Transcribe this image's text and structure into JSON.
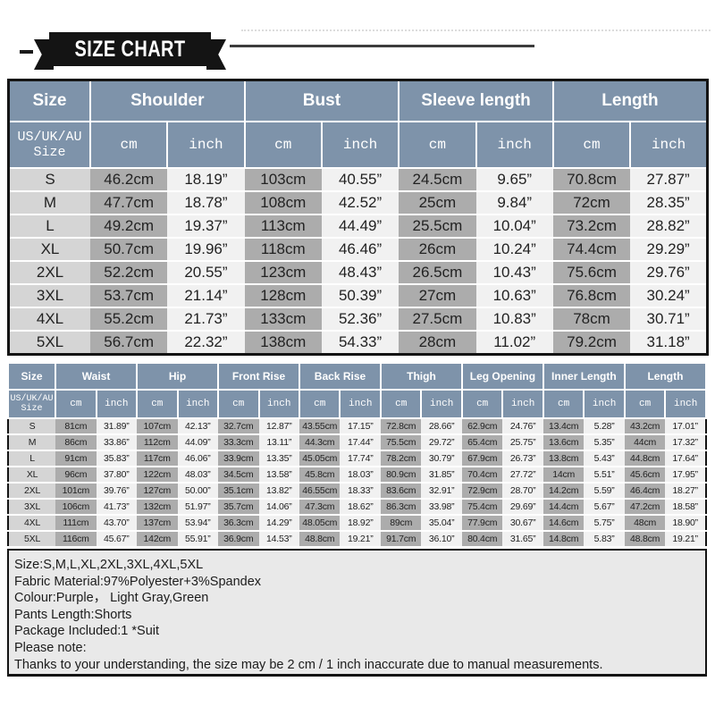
{
  "banner": {
    "title": "SIZE CHART"
  },
  "colors": {
    "header_blue": "#7E93AA",
    "size_column_bg": "#D5D5D5",
    "cm_column_bg": "#ACACAC",
    "inch_column_bg": "#F1F1F1",
    "notes_bg": "#E9E9E9",
    "ribbon_black": "#141414"
  },
  "top_table": {
    "size_header": "Size",
    "sub_size_header": "US/UK/AU\nSize",
    "groups": [
      "Shoulder",
      "Bust",
      "Sleeve length",
      "Length"
    ],
    "units": [
      "cm",
      "inch"
    ],
    "rows": [
      {
        "size": "S",
        "values": [
          "46.2cm",
          "18.19”",
          "103cm",
          "40.55”",
          "24.5cm",
          "9.65”",
          "70.8cm",
          "27.87”"
        ]
      },
      {
        "size": "M",
        "values": [
          "47.7cm",
          "18.78”",
          "108cm",
          "42.52”",
          "25cm",
          "9.84”",
          "72cm",
          "28.35”"
        ]
      },
      {
        "size": "L",
        "values": [
          "49.2cm",
          "19.37”",
          "113cm",
          "44.49”",
          "25.5cm",
          "10.04”",
          "73.2cm",
          "28.82”"
        ]
      },
      {
        "size": "XL",
        "values": [
          "50.7cm",
          "19.96”",
          "118cm",
          "46.46”",
          "26cm",
          "10.24”",
          "74.4cm",
          "29.29”"
        ]
      },
      {
        "size": "2XL",
        "values": [
          "52.2cm",
          "20.55”",
          "123cm",
          "48.43”",
          "26.5cm",
          "10.43”",
          "75.6cm",
          "29.76”"
        ]
      },
      {
        "size": "3XL",
        "values": [
          "53.7cm",
          "21.14”",
          "128cm",
          "50.39”",
          "27cm",
          "10.63”",
          "76.8cm",
          "30.24”"
        ]
      },
      {
        "size": "4XL",
        "values": [
          "55.2cm",
          "21.73”",
          "133cm",
          "52.36”",
          "27.5cm",
          "10.83”",
          "78cm",
          "30.71”"
        ]
      },
      {
        "size": "5XL",
        "values": [
          "56.7cm",
          "22.32”",
          "138cm",
          "54.33”",
          "28cm",
          "11.02”",
          "79.2cm",
          "31.18”"
        ]
      }
    ]
  },
  "bottom_table": {
    "size_header": "Size",
    "sub_size_header": "US/UK/AU\nSize",
    "groups": [
      "Waist",
      "Hip",
      "Front Rise",
      "Back Rise",
      "Thigh",
      "Leg Opening",
      "Inner Length",
      "Length"
    ],
    "units": [
      "cm",
      "inch"
    ],
    "rows": [
      {
        "size": "S",
        "values": [
          "81cm",
          "31.89”",
          "107cm",
          "42.13”",
          "32.7cm",
          "12.87”",
          "43.55cm",
          "17.15”",
          "72.8cm",
          "28.66”",
          "62.9cm",
          "24.76”",
          "13.4cm",
          "5.28”",
          "43.2cm",
          "17.01”"
        ]
      },
      {
        "size": "M",
        "values": [
          "86cm",
          "33.86”",
          "112cm",
          "44.09”",
          "33.3cm",
          "13.11”",
          "44.3cm",
          "17.44”",
          "75.5cm",
          "29.72”",
          "65.4cm",
          "25.75”",
          "13.6cm",
          "5.35”",
          "44cm",
          "17.32”"
        ]
      },
      {
        "size": "L",
        "values": [
          "91cm",
          "35.83”",
          "117cm",
          "46.06”",
          "33.9cm",
          "13.35”",
          "45.05cm",
          "17.74”",
          "78.2cm",
          "30.79”",
          "67.9cm",
          "26.73”",
          "13.8cm",
          "5.43”",
          "44.8cm",
          "17.64”"
        ]
      },
      {
        "size": "XL",
        "values": [
          "96cm",
          "37.80”",
          "122cm",
          "48.03”",
          "34.5cm",
          "13.58”",
          "45.8cm",
          "18.03”",
          "80.9cm",
          "31.85”",
          "70.4cm",
          "27.72”",
          "14cm",
          "5.51”",
          "45.6cm",
          "17.95”"
        ]
      },
      {
        "size": "2XL",
        "values": [
          "101cm",
          "39.76”",
          "127cm",
          "50.00”",
          "35.1cm",
          "13.82”",
          "46.55cm",
          "18.33”",
          "83.6cm",
          "32.91”",
          "72.9cm",
          "28.70”",
          "14.2cm",
          "5.59”",
          "46.4cm",
          "18.27”"
        ]
      },
      {
        "size": "3XL",
        "values": [
          "106cm",
          "41.73”",
          "132cm",
          "51.97”",
          "35.7cm",
          "14.06”",
          "47.3cm",
          "18.62”",
          "86.3cm",
          "33.98”",
          "75.4cm",
          "29.69”",
          "14.4cm",
          "5.67”",
          "47.2cm",
          "18.58”"
        ]
      },
      {
        "size": "4XL",
        "values": [
          "111cm",
          "43.70”",
          "137cm",
          "53.94”",
          "36.3cm",
          "14.29”",
          "48.05cm",
          "18.92”",
          "89cm",
          "35.04”",
          "77.9cm",
          "30.67”",
          "14.6cm",
          "5.75”",
          "48cm",
          "18.90”"
        ]
      },
      {
        "size": "5XL",
        "values": [
          "116cm",
          "45.67”",
          "142cm",
          "55.91”",
          "36.9cm",
          "14.53”",
          "48.8cm",
          "19.21”",
          "91.7cm",
          "36.10”",
          "80.4cm",
          "31.65”",
          "14.8cm",
          "5.83”",
          "48.8cm",
          "19.21”"
        ]
      }
    ]
  },
  "notes": {
    "lines": [
      "Size:S,M,L,XL,2XL,3XL,4XL,5XL",
      "Fabric Material:97%Polyester+3%Spandex",
      "Colour:Purple，  Light Gray,Green",
      "Pants Length:Shorts",
      "Package Included:1 *Suit",
      "Please note:",
      "Thanks to your understanding, the size may be 2 cm / 1 inch inaccurate due to manual measurements."
    ]
  }
}
